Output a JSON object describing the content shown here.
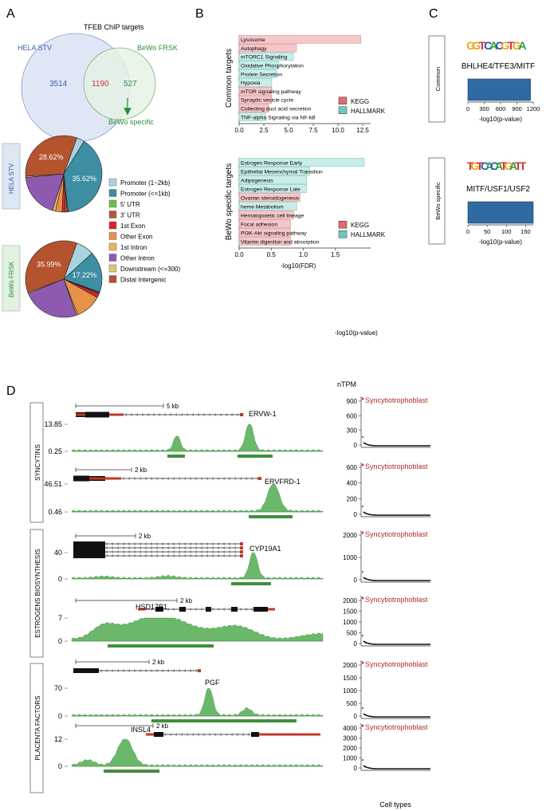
{
  "panels": {
    "A": "A",
    "B": "B",
    "C": "C",
    "D": "D"
  },
  "venn": {
    "title": "TFEB ChIP targets",
    "left_label": "HELA STV",
    "right_label": "BeWo FRSK",
    "left_count": "3514",
    "overlap_count": "1190",
    "right_count": "527",
    "arrow_label": "BeWo specific",
    "colors": {
      "left": "#dfe7f6",
      "right": "#e3f2e3",
      "left_text": "#3b5da8",
      "right_text": "#2f8c3a",
      "overlap_text": "#d62f2f"
    }
  },
  "pie_legend": [
    {
      "label": "Promoter (1~2kb)",
      "color": "#a9d3e0"
    },
    {
      "label": "Promoter (<=1kb)",
      "color": "#3d8ea3"
    },
    {
      "label": "5' UTR",
      "color": "#6fbf44"
    },
    {
      "label": "3' UTR",
      "color": "#b45a3a"
    },
    {
      "label": "1st Exon",
      "color": "#d62626"
    },
    {
      "label": "Other Exon",
      "color": "#e6924a"
    },
    {
      "label": "1st Intron",
      "color": "#f2b05e"
    },
    {
      "label": "Other Intron",
      "color": "#8e5ab0"
    },
    {
      "label": "Downstream (<=300)",
      "color": "#d9c97a"
    },
    {
      "label": "Distal Intergenic",
      "color": "#b5532f"
    }
  ],
  "chart_data": [
    {
      "type": "pie",
      "name": "HELA STV",
      "values": [
        3.0,
        35.62,
        0.3,
        0.8,
        1.2,
        2.5,
        1.2,
        16.9,
        0.5,
        28.62
      ],
      "labels_shown": {
        "1": "35.62%",
        "9": "28.62%"
      }
    },
    {
      "type": "pie",
      "name": "BeWo FRSK",
      "values": [
        7.6,
        17.22,
        0.3,
        0.5,
        1.6,
        11.0,
        0.6,
        24.0,
        0.5,
        35.99
      ],
      "labels_shown": {
        "1": "17.22%",
        "9": "35.99%"
      }
    },
    {
      "type": "bar",
      "orientation": "horizontal",
      "ylabel": "Common targets",
      "categories": [
        "Lysosome",
        "Autophagy",
        "mTORC1 Signaling",
        "Oxidative Phosphorylation",
        "Protein Secretion",
        "Hypoxia",
        "mTOR signaling pathway",
        "Synaptic vesicle cycle",
        "Collecting duct acid secretion",
        "TNF-alpha Signaling via NF-kB"
      ],
      "values": [
        12.3,
        5.8,
        5.5,
        4.0,
        3.8,
        3.3,
        3.3,
        3.3,
        3.0,
        2.7
      ],
      "source": [
        "KEGG",
        "KEGG",
        "HALLMARK",
        "HALLMARK",
        "HALLMARK",
        "HALLMARK",
        "KEGG",
        "KEGG",
        "KEGG",
        "HALLMARK"
      ],
      "xticks": [
        "0.0",
        "2.5",
        "5.0",
        "7.5",
        "10.0",
        "12.5"
      ],
      "xlim": [
        0,
        13.3
      ],
      "legend": [
        "KEGG",
        "HALLMARK"
      ]
    },
    {
      "type": "bar",
      "orientation": "horizontal",
      "ylabel": "BeWo specific targets",
      "categories": [
        "Estrogen Response Early",
        "Epithelial Mesenchymal Transition",
        "Adipogenesis",
        "Estrogen Response Late",
        "Ovarian steroidogenesis",
        "heme Metabolism",
        "Hematopoietic cell lineage",
        "Focal adhesion",
        "PI3K-Akt signaling pathway",
        "Vitamin digestion and absorption"
      ],
      "values": [
        1.95,
        1.1,
        1.05,
        1.05,
        0.95,
        0.9,
        0.85,
        0.8,
        0.8,
        0.8
      ],
      "source": [
        "HALLMARK",
        "HALLMARK",
        "HALLMARK",
        "HALLMARK",
        "KEGG",
        "HALLMARK",
        "KEGG",
        "KEGG",
        "KEGG",
        "KEGG"
      ],
      "xticks": [
        "0.0",
        "0.5",
        "1.0",
        "1.5"
      ],
      "xlim": [
        0,
        2.05
      ],
      "xlabel": "-log10(FDR)",
      "legend": [
        "KEGG",
        "HALLMARK"
      ]
    },
    {
      "type": "bar",
      "orientation": "horizontal",
      "name": "Common",
      "motif": "GGTCACGTGA",
      "tf": "BHLHE4/TFE3/MITF",
      "value": 1150,
      "xticks": [
        "0",
        "300",
        "600",
        "900",
        "1200"
      ],
      "xlim": [
        0,
        1200
      ],
      "xlabel": "-log10(p-value)"
    },
    {
      "type": "bar",
      "orientation": "horizontal",
      "name": "BeWo specific",
      "motif": "TGTCACATGATT",
      "tf": "MITF/USF1/USF2",
      "value": 170,
      "xticks": [
        "0",
        "50",
        "100",
        "150"
      ],
      "xlim": [
        0,
        170
      ],
      "xlabel": "-log10(p-value)"
    }
  ],
  "c_orphan_label": "-log10(p-value)",
  "tracks": {
    "groups": [
      "SYNCYTINS",
      "ESTROGENS BIOSYNTHESIS",
      "PLACENTA FACTORS"
    ],
    "genes": [
      {
        "name": "ERVW-1",
        "scale": "5 kb",
        "ymax": "13.85",
        "ymin": "0.25",
        "nTPM_ticks": [
          "900",
          "600",
          "300",
          "0"
        ],
        "highlight": "Syncytiotrophoblast"
      },
      {
        "name": "ERVFRD-1",
        "scale": "2 kb",
        "ymax": "46.51",
        "ymin": "0.46",
        "nTPM_ticks": [
          "600",
          "400",
          "200",
          "0"
        ],
        "highlight": "Syncytiotrophoblast"
      },
      {
        "name": "CYP19A1",
        "scale": "2 kb",
        "ymax": "40",
        "ymin": "0",
        "nTPM_ticks": [
          "2000",
          "1000",
          "0"
        ],
        "highlight": "Syncytiotrophoblast"
      },
      {
        "name": "HSD17B1",
        "scale": "2 kb",
        "ymax": "7",
        "ymin": "0",
        "nTPM_ticks": [
          "2000",
          "1500",
          "1000",
          "500",
          "0"
        ],
        "highlight": "Syncytiotrophoblast"
      },
      {
        "name": "PGF",
        "scale": "2 kb",
        "ymax": "70",
        "ymin": "0",
        "nTPM_ticks": [
          "2000",
          "1500",
          "1000",
          "500",
          "0"
        ],
        "highlight": "Syncytiotrophoblast"
      },
      {
        "name": "INSL4",
        "scale": "2 kb",
        "ymax": "12",
        "ymin": "0",
        "nTPM_ticks": [
          "4000",
          "3000",
          "2000",
          "1000",
          "0"
        ],
        "highlight": "Syncytiotrophoblast"
      }
    ],
    "ntpm_title": "nTPM",
    "xlabel": "Cell types"
  }
}
